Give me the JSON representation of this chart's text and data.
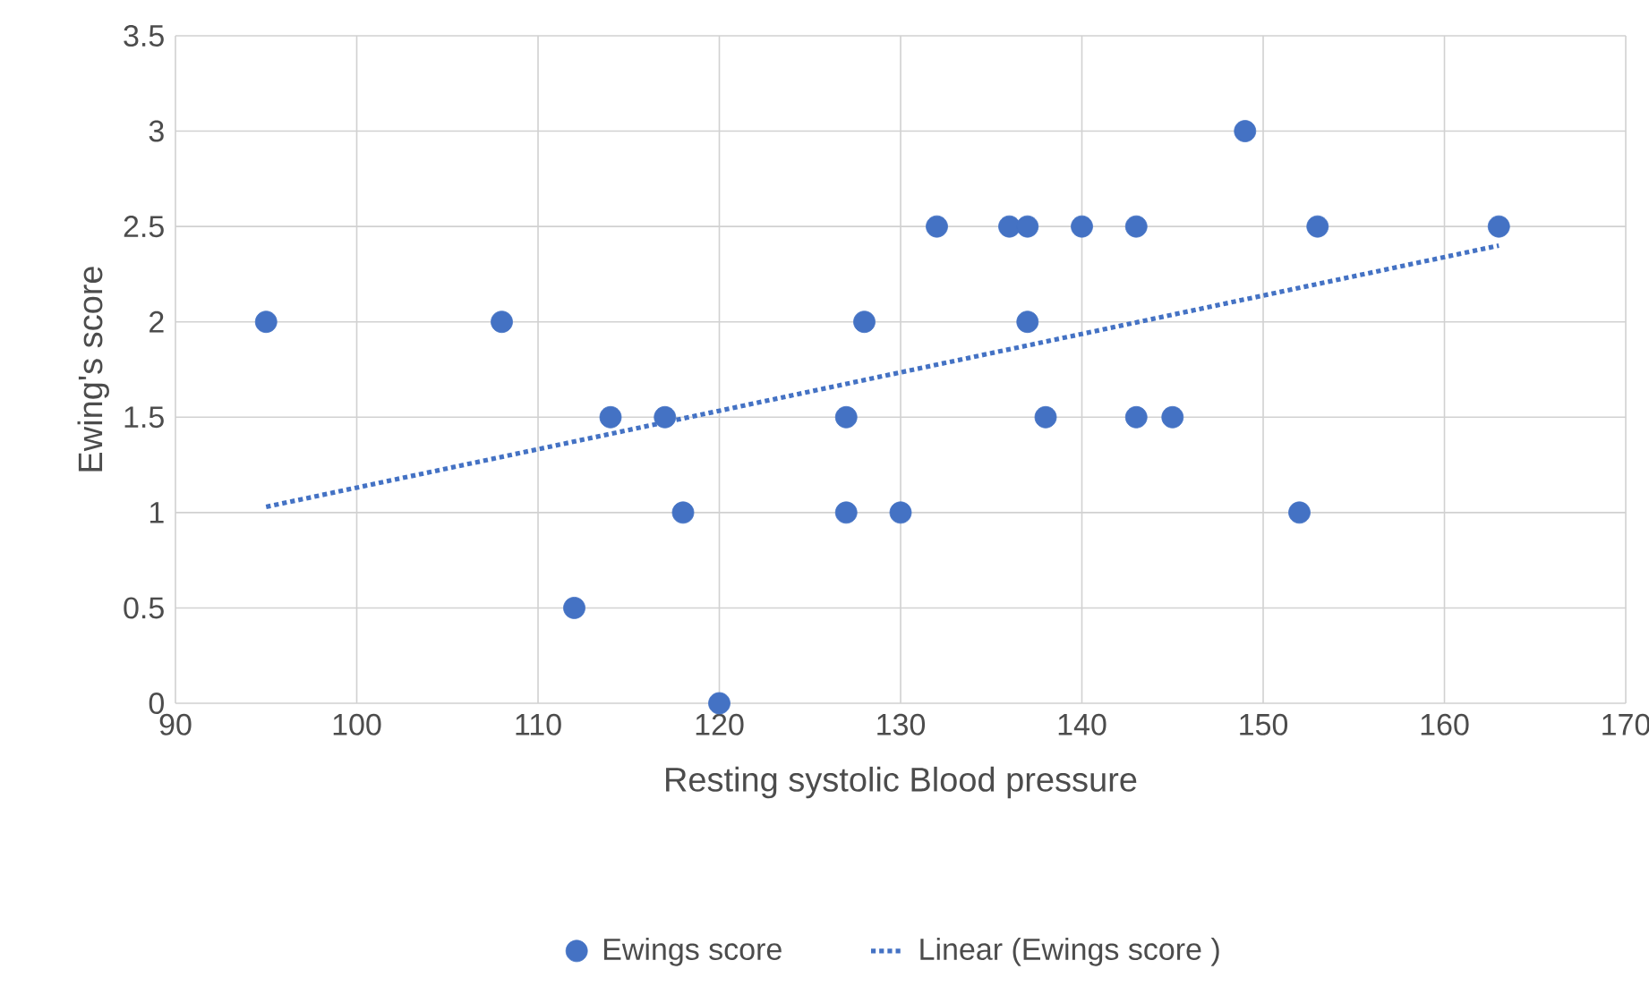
{
  "chart_data": {
    "type": "scatter",
    "xlabel": "Resting systolic Blood pressure",
    "ylabel": "Ewing's score",
    "xlim": [
      90,
      170
    ],
    "ylim": [
      0,
      3.5
    ],
    "xticks": [
      90,
      100,
      110,
      120,
      130,
      140,
      150,
      160,
      170
    ],
    "yticks": [
      0,
      0.5,
      1,
      1.5,
      2,
      2.5,
      3,
      3.5
    ],
    "grid": true,
    "legend": "bottom",
    "series": [
      {
        "name": "Ewings score",
        "color": "#4472c4",
        "x": [
          95,
          108,
          112,
          114,
          117,
          118,
          120,
          127,
          127,
          128,
          130,
          132,
          136,
          137,
          137,
          138,
          140,
          143,
          143,
          145,
          149,
          152,
          153,
          163
        ],
        "values": [
          2,
          2,
          0.5,
          1.5,
          1.5,
          1,
          0,
          1.5,
          1,
          2,
          1,
          2.5,
          2.5,
          2.5,
          2,
          1.5,
          2.5,
          2.5,
          1.5,
          1.5,
          3,
          1,
          2.5,
          2.5
        ]
      },
      {
        "name": "Linear (Ewings score )",
        "type": "line",
        "line_style": "dotted",
        "color": "#4472c4",
        "x": [
          95,
          163
        ],
        "values": [
          1.03,
          2.4
        ]
      }
    ]
  }
}
